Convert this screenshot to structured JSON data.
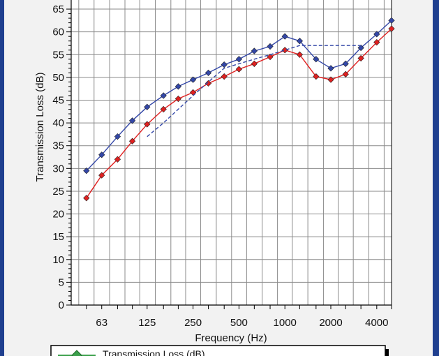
{
  "chart_data": {
    "type": "line",
    "xlabel": "Frequency (Hz)",
    "ylabel": "Transmission Loss (dB)",
    "x_scale": "log",
    "x_tick_labels": [
      "63",
      "125",
      "250",
      "500",
      "1000",
      "2000",
      "4000"
    ],
    "x_ticks": [
      63,
      125,
      250,
      500,
      1000,
      2000,
      4000
    ],
    "x_bands": [
      50,
      63,
      80,
      100,
      125,
      160,
      200,
      250,
      315,
      400,
      500,
      630,
      800,
      1000,
      1250,
      1600,
      2000,
      2500,
      3150,
      4000,
      5000
    ],
    "ylim": [
      0,
      67
    ],
    "y_ticks": [
      0,
      5,
      10,
      15,
      20,
      25,
      30,
      35,
      40,
      45,
      50,
      55,
      60,
      65
    ],
    "grid": true,
    "series": [
      {
        "color": "#3347a8",
        "marker": "diamond",
        "style": "solid",
        "x": [
          50,
          63,
          80,
          100,
          125,
          160,
          200,
          250,
          315,
          400,
          500,
          630,
          800,
          1000,
          1250,
          1600,
          2000,
          2500,
          3150,
          4000,
          5000
        ],
        "values": [
          29.5,
          33,
          37,
          40.5,
          43.5,
          46,
          48,
          49.5,
          51,
          52.8,
          54,
          55.8,
          56.8,
          59,
          58,
          54,
          52,
          53,
          56.5,
          59.5,
          62.5
        ]
      },
      {
        "color": "#e02020",
        "marker": "diamond",
        "style": "solid",
        "x": [
          50,
          63,
          80,
          100,
          125,
          160,
          200,
          250,
          315,
          400,
          500,
          630,
          800,
          1000,
          1250,
          1600,
          2000,
          2500,
          3150,
          4000,
          5000
        ],
        "values": [
          23.5,
          28.5,
          32,
          36,
          39.7,
          43,
          45.3,
          46.7,
          48.7,
          50.2,
          51.8,
          53,
          54.5,
          56,
          55,
          50.2,
          49.5,
          50.7,
          54.2,
          57.7,
          60.7
        ]
      },
      {
        "color": "#3347a8",
        "marker": "none",
        "style": "dashed",
        "x": [
          125,
          160,
          200,
          250,
          315,
          400,
          500,
          630,
          800,
          1000,
          1250,
          1600,
          2000,
          2500,
          3150
        ],
        "values": [
          37,
          40,
          43,
          46,
          49,
          52,
          53,
          54,
          55,
          56,
          57,
          57,
          57,
          57,
          57
        ]
      }
    ],
    "legend": {
      "position": "bottom",
      "entries": [
        {
          "label": "Transmission Loss (dB)",
          "color": "#3aa04a",
          "marker": "diamond"
        }
      ]
    }
  }
}
